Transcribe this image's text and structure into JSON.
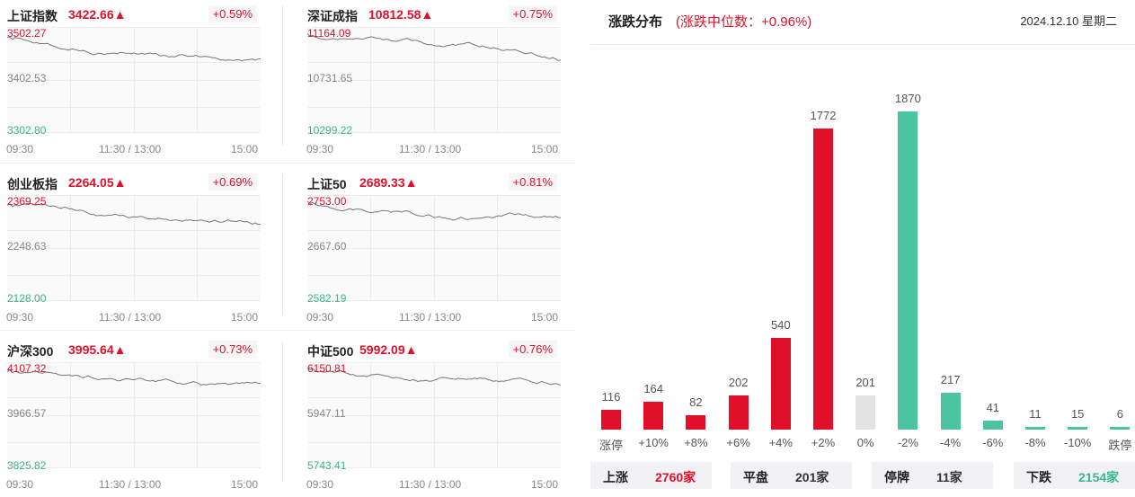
{
  "indices": [
    {
      "name": "上证指数",
      "price": "3422.66▲",
      "pct": "+0.59%",
      "high": "3502.27",
      "mid": "3402.53",
      "low": "3302.80"
    },
    {
      "name": "深证成指",
      "price": "10812.58▲",
      "pct": "+0.75%",
      "high": "11164.09",
      "mid": "10731.65",
      "low": "10299.22"
    },
    {
      "name": "创业板指",
      "price": "2264.05▲",
      "pct": "+0.69%",
      "high": "2369.25",
      "mid": "2248.63",
      "low": "2128.00"
    },
    {
      "name": "上证50",
      "price": "2689.33▲",
      "pct": "+0.81%",
      "high": "2753.00",
      "mid": "2667.60",
      "low": "2582.19"
    },
    {
      "name": "沪深300",
      "price": "3995.64▲",
      "pct": "+0.73%",
      "high": "4107.32",
      "mid": "3966.57",
      "low": "3825.82"
    },
    {
      "name": "中证500",
      "price": "5992.09▲",
      "pct": "+0.76%",
      "high": "6150.81",
      "mid": "5947.11",
      "low": "5743.41"
    }
  ],
  "time_axis": {
    "start": "09:30",
    "mid": "11:30 / 13:00",
    "end": "15:00"
  },
  "distribution": {
    "title": "涨跌分布",
    "subtitle": "(涨跌中位数：+0.96%)",
    "date": "2024.12.10 星期二",
    "bars": [
      {
        "label": "涨停",
        "value": 116,
        "color": "#e0102a"
      },
      {
        "label": "+10%",
        "value": 164,
        "color": "#e0102a"
      },
      {
        "label": "+8%",
        "value": 82,
        "color": "#e0102a"
      },
      {
        "label": "+6%",
        "value": 202,
        "color": "#e0102a"
      },
      {
        "label": "+4%",
        "value": 540,
        "color": "#e0102a"
      },
      {
        "label": "+2%",
        "value": 1772,
        "color": "#e0102a"
      },
      {
        "label": "0%",
        "value": 201,
        "color": "#e3e3e3"
      },
      {
        "label": "-2%",
        "value": 1870,
        "color": "#4cc4a0"
      },
      {
        "label": "-4%",
        "value": 217,
        "color": "#4cc4a0"
      },
      {
        "label": "-6%",
        "value": 41,
        "color": "#4cc4a0"
      },
      {
        "label": "-8%",
        "value": 11,
        "color": "#4cc4a0"
      },
      {
        "label": "-10%",
        "value": 15,
        "color": "#4cc4a0"
      },
      {
        "label": "跌停",
        "value": 6,
        "color": "#4cc4a0"
      }
    ],
    "summary": [
      {
        "key": "上涨",
        "value": "2760家",
        "color": "#e0102a"
      },
      {
        "key": "平盘",
        "value": "201家",
        "color": "#333333"
      },
      {
        "key": "停牌",
        "value": "11家",
        "color": "#333333"
      },
      {
        "key": "下跌",
        "value": "2154家",
        "color": "#3bb58e"
      }
    ]
  }
}
